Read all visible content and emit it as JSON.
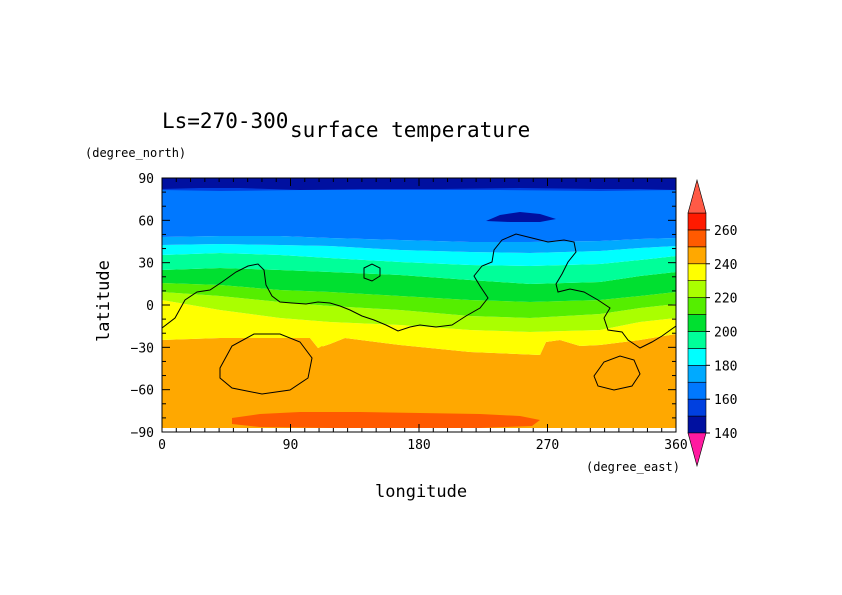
{
  "chart_data": {
    "type": "heatmap",
    "title": "surface temperature",
    "subtitle": "Ls=270-300",
    "xlabel": "longitude",
    "ylabel": "latitude",
    "x_unit": "(degree_east)",
    "y_unit": "(degree_north)",
    "xlim": [
      0,
      360
    ],
    "ylim": [
      -90,
      90
    ],
    "x_ticks": [
      "0",
      "90",
      "180",
      "270",
      "360"
    ],
    "y_ticks": [
      "90",
      "60",
      "30",
      "0",
      "−30",
      "−60",
      "−90"
    ],
    "x_tick_values": [
      0,
      90,
      180,
      270,
      360
    ],
    "y_tick_values": [
      90,
      60,
      30,
      0,
      -30,
      -60,
      -90
    ],
    "colorbar": {
      "levels": [
        140,
        150,
        160,
        170,
        180,
        190,
        200,
        210,
        220,
        230,
        240,
        250,
        260
      ],
      "tick_labels": [
        "140",
        "160",
        "180",
        "200",
        "220",
        "240",
        "260"
      ],
      "colors": [
        "#0010a0",
        "#0040e0",
        "#0078ff",
        "#00aaff",
        "#00ffff",
        "#00ff99",
        "#00e030",
        "#55ee00",
        "#aaff00",
        "#ffff00",
        "#ffa800",
        "#ff5a00",
        "#ff1a00"
      ],
      "under_color": "#ff1aa0",
      "over_color": "#ff5a46"
    },
    "surface_temperature_K": {
      "latitudes": [
        85,
        75,
        65,
        55,
        45,
        35,
        25,
        15,
        5,
        -5,
        -15,
        -25,
        -35,
        -45,
        -55,
        -65,
        -75,
        -85
      ],
      "zonal_mean": [
        145,
        155,
        155,
        157,
        165,
        185,
        198,
        210,
        218,
        225,
        235,
        240,
        245,
        245,
        245,
        245,
        252,
        null
      ],
      "south_polar_maximum_band": {
        "lon_range": [
          50,
          265
        ],
        "lat": -80,
        "value": 252
      },
      "north_polar_cold_spot": {
        "lon_range": [
          225,
          275
        ],
        "lat": 60,
        "value": 145
      }
    },
    "topography_contour": "zero-elevation line (black)"
  }
}
